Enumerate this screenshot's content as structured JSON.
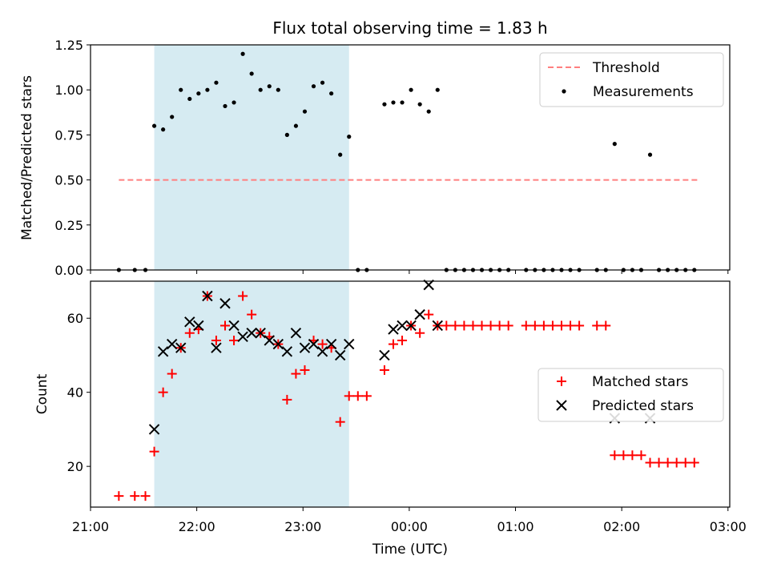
{
  "figure": {
    "title": "Flux total observing time = 1.83 h"
  },
  "colors": {
    "shade": "#add8e6",
    "threshold": "#ff7f7f",
    "matched": "#ff0000",
    "predicted": "#000000",
    "measure": "#000000"
  },
  "x_axis": {
    "label": "Time (UTC)",
    "ticks": [
      {
        "t": 0,
        "label": "21:00"
      },
      {
        "t": 60,
        "label": "22:00"
      },
      {
        "t": 120,
        "label": "23:00"
      },
      {
        "t": 180,
        "label": "00:00"
      },
      {
        "t": 240,
        "label": "01:00"
      },
      {
        "t": 300,
        "label": "02:00"
      },
      {
        "t": 360,
        "label": "03:00"
      }
    ]
  },
  "chart_data": [
    {
      "type": "scatter",
      "title": "Flux total observing time = 1.83 h",
      "ylabel": "Matched/Predicted stars",
      "xlim": [
        0,
        361
      ],
      "ylim": [
        0,
        1.25
      ],
      "yticks": [
        {
          "v": 0,
          "label": "0.00"
        },
        {
          "v": 0.25,
          "label": "0.25"
        },
        {
          "v": 0.5,
          "label": "0.50"
        },
        {
          "v": 0.75,
          "label": "0.75"
        },
        {
          "v": 1.0,
          "label": "1.00"
        },
        {
          "v": 1.25,
          "label": "1.25"
        }
      ],
      "shaded_region": [
        36,
        146
      ],
      "threshold": {
        "name": "Threshold",
        "value": 0.5,
        "x": [
          16,
          344
        ]
      },
      "legend": {
        "placement": "upper right",
        "entries": [
          "Threshold",
          "Measurements"
        ]
      },
      "series": [
        {
          "name": "Measurements",
          "x": [
            16,
            25,
            31,
            36,
            41,
            46,
            51,
            56,
            61,
            66,
            71,
            76,
            81,
            86,
            91,
            96,
            101,
            106,
            111,
            116,
            121,
            126,
            131,
            136,
            141,
            146,
            151,
            156,
            166,
            171,
            176,
            181,
            186,
            191,
            196,
            201,
            206,
            211,
            216,
            221,
            226,
            231,
            236,
            246,
            251,
            256,
            261,
            266,
            271,
            276,
            286,
            291,
            296,
            301,
            306,
            311,
            316,
            321,
            326,
            331,
            336,
            341
          ],
          "y": [
            0,
            0,
            0,
            0.8,
            0.78,
            0.85,
            1.0,
            0.95,
            0.98,
            1.0,
            1.04,
            0.91,
            0.93,
            1.2,
            1.09,
            1.0,
            1.02,
            1.0,
            0.75,
            0.8,
            0.88,
            1.02,
            1.04,
            0.98,
            0.64,
            0.74,
            0,
            0,
            0.92,
            0.93,
            0.93,
            1.0,
            0.92,
            0.88,
            1.0,
            0,
            0,
            0,
            0,
            0,
            0,
            0,
            0,
            0,
            0,
            0,
            0,
            0,
            0,
            0,
            0,
            0,
            0.7,
            0,
            0,
            0,
            0.64,
            0,
            0,
            0,
            0,
            0
          ]
        }
      ]
    },
    {
      "type": "scatter",
      "ylabel": "Count",
      "xlabel": "Time (UTC)",
      "xlim": [
        0,
        361
      ],
      "ylim": [
        9,
        70
      ],
      "yticks": [
        {
          "v": 20,
          "label": "20"
        },
        {
          "v": 40,
          "label": "40"
        },
        {
          "v": 60,
          "label": "60"
        }
      ],
      "shaded_region": [
        36,
        146
      ],
      "legend": {
        "placement": "center right",
        "entries": [
          "Matched stars",
          "Predicted stars"
        ]
      },
      "series": [
        {
          "name": "Matched stars",
          "marker": "plus",
          "x": [
            16,
            25,
            31,
            36,
            41,
            46,
            51,
            56,
            61,
            66,
            71,
            76,
            81,
            86,
            91,
            96,
            101,
            106,
            111,
            116,
            121,
            126,
            131,
            136,
            141,
            146,
            151,
            156,
            166,
            171,
            176,
            181,
            186,
            191,
            196,
            201,
            206,
            211,
            216,
            221,
            226,
            231,
            236,
            246,
            251,
            256,
            261,
            266,
            271,
            276,
            286,
            291,
            296,
            301,
            306,
            311,
            316,
            321,
            326,
            331,
            336,
            341
          ],
          "y": [
            12,
            12,
            12,
            24,
            40,
            45,
            52,
            56,
            57,
            66,
            54,
            58,
            54,
            66,
            61,
            56,
            55,
            53,
            38,
            45,
            46,
            54,
            53,
            52,
            32,
            39,
            39,
            39,
            46,
            53,
            54,
            58,
            56,
            61,
            58,
            58,
            58,
            58,
            58,
            58,
            58,
            58,
            58,
            58,
            58,
            58,
            58,
            58,
            58,
            58,
            58,
            58,
            23,
            23,
            23,
            23,
            21,
            21,
            21,
            21,
            21,
            21
          ]
        },
        {
          "name": "Predicted stars",
          "marker": "x",
          "x": [
            36,
            41,
            46,
            51,
            56,
            61,
            66,
            71,
            76,
            81,
            86,
            91,
            96,
            101,
            106,
            111,
            116,
            121,
            126,
            131,
            136,
            141,
            146,
            166,
            171,
            176,
            181,
            186,
            191,
            196,
            296,
            316
          ],
          "y": [
            30,
            51,
            53,
            52,
            59,
            58,
            66,
            52,
            64,
            58,
            55,
            56,
            56,
            54,
            53,
            51,
            56,
            52,
            53,
            51,
            53,
            50,
            53,
            50,
            57,
            58,
            58,
            61,
            69,
            58,
            33,
            33
          ]
        }
      ]
    }
  ]
}
